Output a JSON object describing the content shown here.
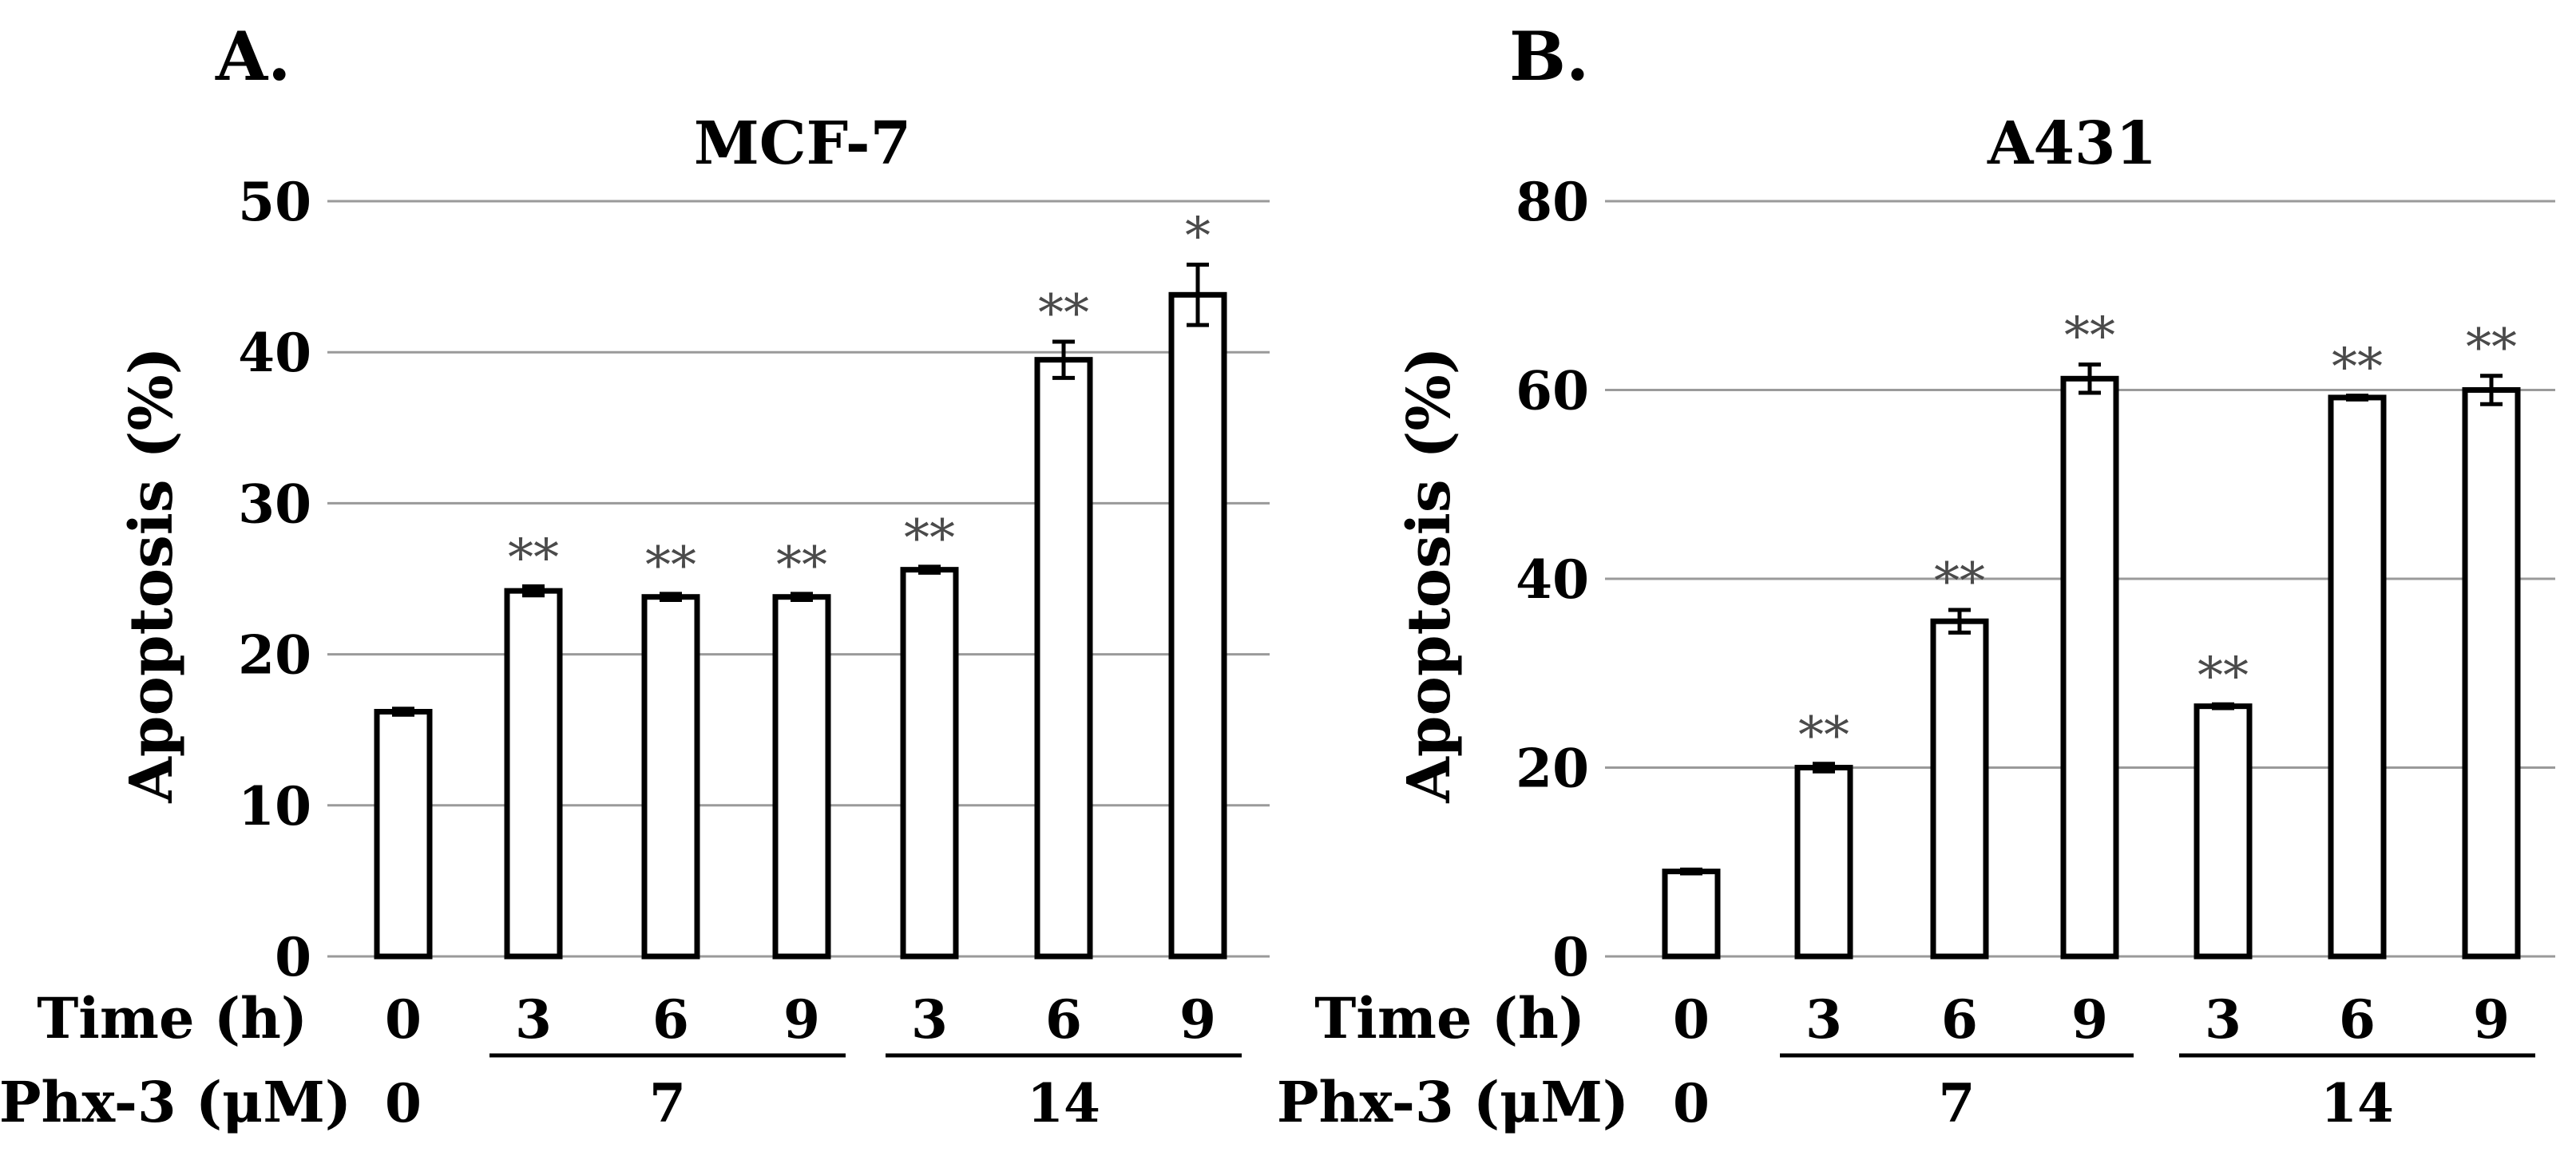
{
  "chart_data": [
    {
      "type": "bar",
      "panel_label": "A.",
      "title": "MCF-7",
      "ylabel": "Apoptosis (%)",
      "ylim": [
        0,
        50
      ],
      "yticks": [
        "0",
        "10",
        "20",
        "30",
        "40",
        "50"
      ],
      "grid": true,
      "row_labels": {
        "time": "Time (h)",
        "dose": "Phx-3 (μM)"
      },
      "time_values": [
        "0",
        "3",
        "6",
        "9",
        "3",
        "6",
        "9"
      ],
      "dose_groups": [
        {
          "label": "0",
          "bars": [
            0
          ]
        },
        {
          "label": "7",
          "bars": [
            1,
            3
          ]
        },
        {
          "label": "14",
          "bars": [
            4,
            6
          ]
        }
      ],
      "values": [
        16.2,
        24.2,
        23.8,
        23.8,
        25.6,
        39.5,
        43.8
      ],
      "errors": [
        0.2,
        0.3,
        0.2,
        0.2,
        0.2,
        1.2,
        2.0
      ],
      "significance": [
        "",
        "**",
        "**",
        "**",
        "**",
        "**",
        "*"
      ]
    },
    {
      "type": "bar",
      "panel_label": "B.",
      "title": "A431",
      "ylabel": "Apoptosis (%)",
      "ylim": [
        0,
        80
      ],
      "yticks": [
        "0",
        "20",
        "40",
        "60",
        "80"
      ],
      "grid": true,
      "row_labels": {
        "time": "Time (h)",
        "dose": "Phx-3 (μM)"
      },
      "time_values": [
        "0",
        "3",
        "6",
        "9",
        "3",
        "6",
        "9"
      ],
      "dose_groups": [
        {
          "label": "0",
          "bars": [
            0
          ]
        },
        {
          "label": "7",
          "bars": [
            1,
            3
          ]
        },
        {
          "label": "14",
          "bars": [
            4,
            6
          ]
        }
      ],
      "values": [
        9.0,
        20.0,
        35.5,
        61.2,
        26.5,
        59.2,
        60.0
      ],
      "errors": [
        0.2,
        0.4,
        1.2,
        1.5,
        0.2,
        0.2,
        1.5
      ],
      "significance": [
        "",
        "**",
        "**",
        "**",
        "**",
        "**",
        "**"
      ]
    }
  ]
}
